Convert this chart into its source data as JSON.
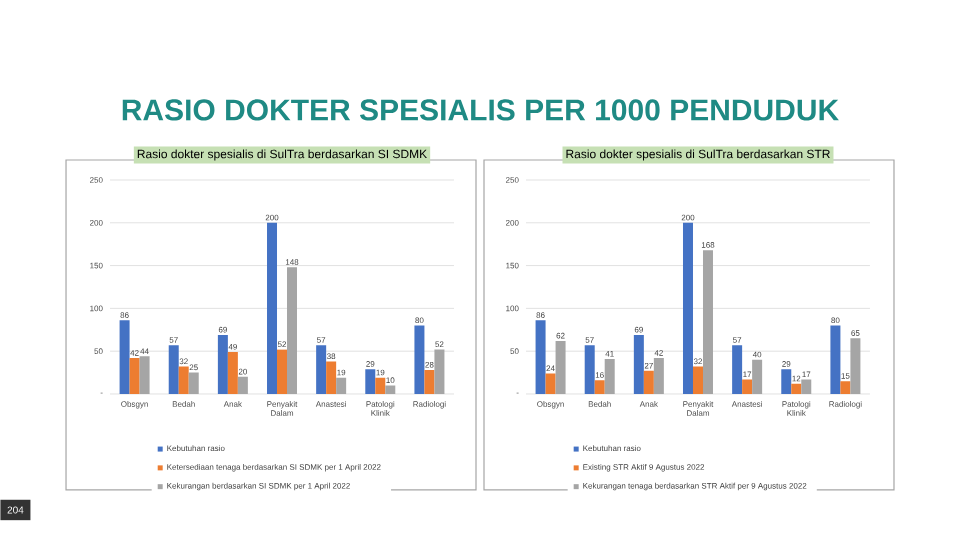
{
  "chart_data": [
    {
      "type": "bar",
      "title": "RASIO DOKTER SPESIALIS PER 1000 PENDUDUK",
      "subtitle": "Rasio dokter spesialis di SulTra berdasarkan SI SDMK",
      "categories": [
        "Obsgyn",
        "Bedah",
        "Anak",
        "Penyakit Dalam",
        "Anastesi",
        "Patologi Klinik",
        "Radiologi"
      ],
      "series": [
        {
          "name": "Kebutuhan rasio",
          "color": "#4472c4",
          "values": [
            86,
            57,
            69,
            200,
            57,
            29,
            80
          ]
        },
        {
          "name": "Ketersediaan tenaga berdasarkan SI SDMK per 1 April 2022",
          "color": "#ed7d31",
          "values": [
            42,
            32,
            49,
            52,
            38,
            19,
            28
          ]
        },
        {
          "name": "Kekurangan berdasarkan SI SDMK per 1 April 2022",
          "color": "#a5a5a5",
          "values": [
            44,
            25,
            20,
            148,
            19,
            10,
            52
          ]
        }
      ],
      "ylim": [
        0,
        250
      ],
      "yticks": [
        {
          "value": 0,
          "label": "-"
        },
        50,
        100,
        150,
        200,
        250
      ],
      "grid": "y",
      "legend": "bottom",
      "data_labels": true,
      "annotations": [
        "204"
      ]
    },
    {
      "type": "bar",
      "subtitle": "Rasio dokter spesialis di SulTra berdasarkan STR",
      "categories": [
        "Obsgyn",
        "Bedah",
        "Anak",
        "Penyakit Dalam",
        "Anastesi",
        "Patologi Klinik",
        "Radiologi"
      ],
      "series": [
        {
          "name": "Kebutuhan rasio",
          "color": "#4472c4",
          "values": [
            86,
            57,
            69,
            200,
            57,
            29,
            80
          ]
        },
        {
          "name": "Existing STR Aktif 9 Agustus 2022",
          "color": "#ed7d31",
          "values": [
            24,
            16,
            27,
            32,
            17,
            12,
            15
          ]
        },
        {
          "name": "Kekurangan tenaga berdasarkan STR Aktif per 9 Agustus 2022",
          "color": "#a5a5a5",
          "values": [
            62,
            41,
            42,
            168,
            40,
            17,
            65
          ]
        }
      ],
      "ylim": [
        0,
        250
      ],
      "yticks": [
        {
          "value": 0,
          "label": "-"
        },
        50,
        100,
        150,
        200,
        250
      ],
      "grid": "y",
      "legend": "bottom",
      "data_labels": true
    }
  ]
}
